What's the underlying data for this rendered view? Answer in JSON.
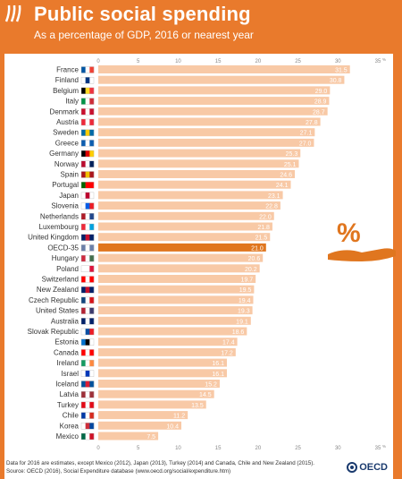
{
  "header": {
    "title": "Public social spending",
    "subtitle": "As a percentage of GDP, 2016 or nearest year"
  },
  "footer": {
    "note": "Data for 2016 are estimates, except Mexico (2012), Japan (2013), Turkey (2014) and Canada, Chile and New Zealand (2015).",
    "source": "Source: OECD (2016), Social Expenditure database (www.oecd.org/social/expenditure.htm)",
    "brand": "OECD"
  },
  "colors": {
    "background": "#e97a2c",
    "bar": "#f8c9a6",
    "bar_highlight": "#e0761f"
  },
  "icons": {
    "logo": "oecd-stripes-icon",
    "hand": "hand-percent-icon"
  },
  "chart_data": {
    "type": "bar",
    "orientation": "horizontal",
    "categories": [
      "France",
      "Finland",
      "Belgium",
      "Italy",
      "Denmark",
      "Austria",
      "Sweden",
      "Greece",
      "Germany",
      "Norway",
      "Spain",
      "Portugal",
      "Japan",
      "Slovenia",
      "Netherlands",
      "Luxembourg",
      "United Kingdom",
      "OECD-35",
      "Hungary",
      "Poland",
      "Switzerland",
      "New Zealand",
      "Czech Republic",
      "United States",
      "Australia",
      "Slovak Republic",
      "Estonia",
      "Canada",
      "Ireland",
      "Israel",
      "Iceland",
      "Latvia",
      "Turkey",
      "Chile",
      "Korea",
      "Mexico"
    ],
    "values": [
      31.5,
      30.8,
      29.0,
      28.9,
      28.7,
      27.8,
      27.1,
      27.0,
      25.3,
      25.1,
      24.6,
      24.1,
      23.1,
      22.8,
      22.0,
      21.8,
      21.5,
      21.0,
      20.6,
      20.2,
      19.7,
      19.5,
      19.4,
      19.3,
      19.1,
      18.6,
      17.4,
      17.2,
      16.1,
      16.1,
      15.2,
      14.5,
      13.5,
      11.2,
      10.4,
      7.5
    ],
    "value_labels": [
      "31.5",
      "30.8",
      "29.0",
      "28.9",
      "28.7",
      "27.8",
      "27.1",
      "27.0",
      "25.3",
      "25.1",
      "24.6",
      "24.1",
      "23.1",
      "22.8",
      "22.0",
      "21.8",
      "21.5",
      "21.0",
      "20.6",
      "20.2",
      "19.7",
      "19.5",
      "19.4",
      "19.3",
      "19.1",
      "18.6",
      "17.4",
      "17.2",
      "16.1",
      "16.1",
      "15.2",
      "14.5",
      "13.5",
      "11.2",
      "10.4",
      "7.5"
    ],
    "highlight": "OECD-35",
    "xlim": [
      0,
      35
    ],
    "xticks": [
      "0",
      "5",
      "10",
      "15",
      "20",
      "25",
      "30",
      "35"
    ],
    "unit": "%",
    "grid": false,
    "flags": {
      "France": [
        "#0055a4",
        "#ffffff",
        "#ef4135"
      ],
      "Finland": [
        "#ffffff",
        "#003580",
        "#ffffff"
      ],
      "Belgium": [
        "#000000",
        "#fdda24",
        "#ef3340"
      ],
      "Italy": [
        "#009246",
        "#ffffff",
        "#ce2b37"
      ],
      "Denmark": [
        "#c8102e",
        "#ffffff",
        "#c8102e"
      ],
      "Austria": [
        "#ed2939",
        "#ffffff",
        "#ed2939"
      ],
      "Sweden": [
        "#006aa7",
        "#fecc00",
        "#006aa7"
      ],
      "Greece": [
        "#0d5eaf",
        "#ffffff",
        "#0d5eaf"
      ],
      "Germany": [
        "#000000",
        "#dd0000",
        "#ffce00"
      ],
      "Norway": [
        "#ba0c2f",
        "#ffffff",
        "#00205b"
      ],
      "Spain": [
        "#aa151b",
        "#f1bf00",
        "#aa151b"
      ],
      "Portugal": [
        "#006600",
        "#ff0000",
        "#ff0000"
      ],
      "Japan": [
        "#ffffff",
        "#bc002d",
        "#ffffff"
      ],
      "Slovenia": [
        "#ffffff",
        "#005ce5",
        "#ed1c24"
      ],
      "Netherlands": [
        "#ae1c28",
        "#ffffff",
        "#21468b"
      ],
      "Luxembourg": [
        "#ed2939",
        "#ffffff",
        "#00a1de"
      ],
      "United Kingdom": [
        "#012169",
        "#c8102e",
        "#012169"
      ],
      "OECD-35": [
        "#6b7fa8",
        "#ffffff",
        "#6b7fa8"
      ],
      "Hungary": [
        "#cd2a3e",
        "#ffffff",
        "#436f4d"
      ],
      "Poland": [
        "#ffffff",
        "#ffffff",
        "#dc143c"
      ],
      "Switzerland": [
        "#ff0000",
        "#ffffff",
        "#ff0000"
      ],
      "New Zealand": [
        "#012169",
        "#c8102e",
        "#012169"
      ],
      "Czech Republic": [
        "#11457e",
        "#ffffff",
        "#d7141a"
      ],
      "United States": [
        "#b22234",
        "#ffffff",
        "#3c3b6e"
      ],
      "Australia": [
        "#012169",
        "#ffffff",
        "#012169"
      ],
      "Slovak Republic": [
        "#ffffff",
        "#0b4ea2",
        "#ee1c25"
      ],
      "Estonia": [
        "#0072ce",
        "#000000",
        "#ffffff"
      ],
      "Canada": [
        "#ff0000",
        "#ffffff",
        "#ff0000"
      ],
      "Ireland": [
        "#169b62",
        "#ffffff",
        "#ff883e"
      ],
      "Israel": [
        "#ffffff",
        "#0038b8",
        "#ffffff"
      ],
      "Iceland": [
        "#02529c",
        "#dc1e35",
        "#02529c"
      ],
      "Latvia": [
        "#9e3039",
        "#ffffff",
        "#9e3039"
      ],
      "Turkey": [
        "#e30a17",
        "#ffffff",
        "#e30a17"
      ],
      "Chile": [
        "#0039a6",
        "#ffffff",
        "#d52b1e"
      ],
      "Korea": [
        "#ffffff",
        "#cd2e3a",
        "#0047a0"
      ],
      "Mexico": [
        "#006847",
        "#ffffff",
        "#ce1126"
      ]
    }
  }
}
